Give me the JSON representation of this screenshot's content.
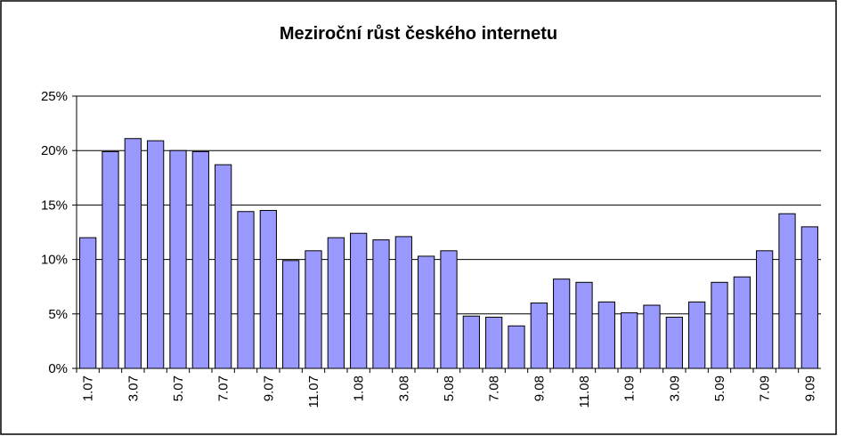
{
  "chart_data": {
    "type": "bar",
    "title": "Meziroční růst českého internetu",
    "categories": [
      "1.07",
      null,
      "3.07",
      null,
      "5.07",
      null,
      "7.07",
      null,
      "9.07",
      null,
      "11.07",
      null,
      "1.08",
      null,
      "3.08",
      null,
      "5.08",
      null,
      "7.08",
      null,
      "9.08",
      null,
      "11.08",
      null,
      "1.09",
      null,
      "3.09",
      null,
      "5.09",
      null,
      "7.09",
      null,
      "9.09"
    ],
    "values": [
      12,
      19.9,
      21.1,
      20.9,
      20,
      19.9,
      18.7,
      14.4,
      14.5,
      9.9,
      10.8,
      12,
      12.4,
      11.8,
      12.1,
      10.3,
      10.8,
      4.8,
      4.7,
      3.9,
      6,
      8.2,
      7.9,
      6.1,
      5.1,
      5.8,
      4.7,
      6.1,
      7.9,
      8.4,
      10.8,
      14.2,
      13
    ],
    "color": "#9999ff",
    "ylim": [
      0,
      25
    ],
    "yticks": [
      {
        "value": 0,
        "label": "0%"
      },
      {
        "value": 5,
        "label": "5%"
      },
      {
        "value": 10,
        "label": "10%"
      },
      {
        "value": 15,
        "label": "15%"
      },
      {
        "value": 20,
        "label": "20%"
      },
      {
        "value": 25,
        "label": "25%"
      }
    ],
    "grid": true
  }
}
